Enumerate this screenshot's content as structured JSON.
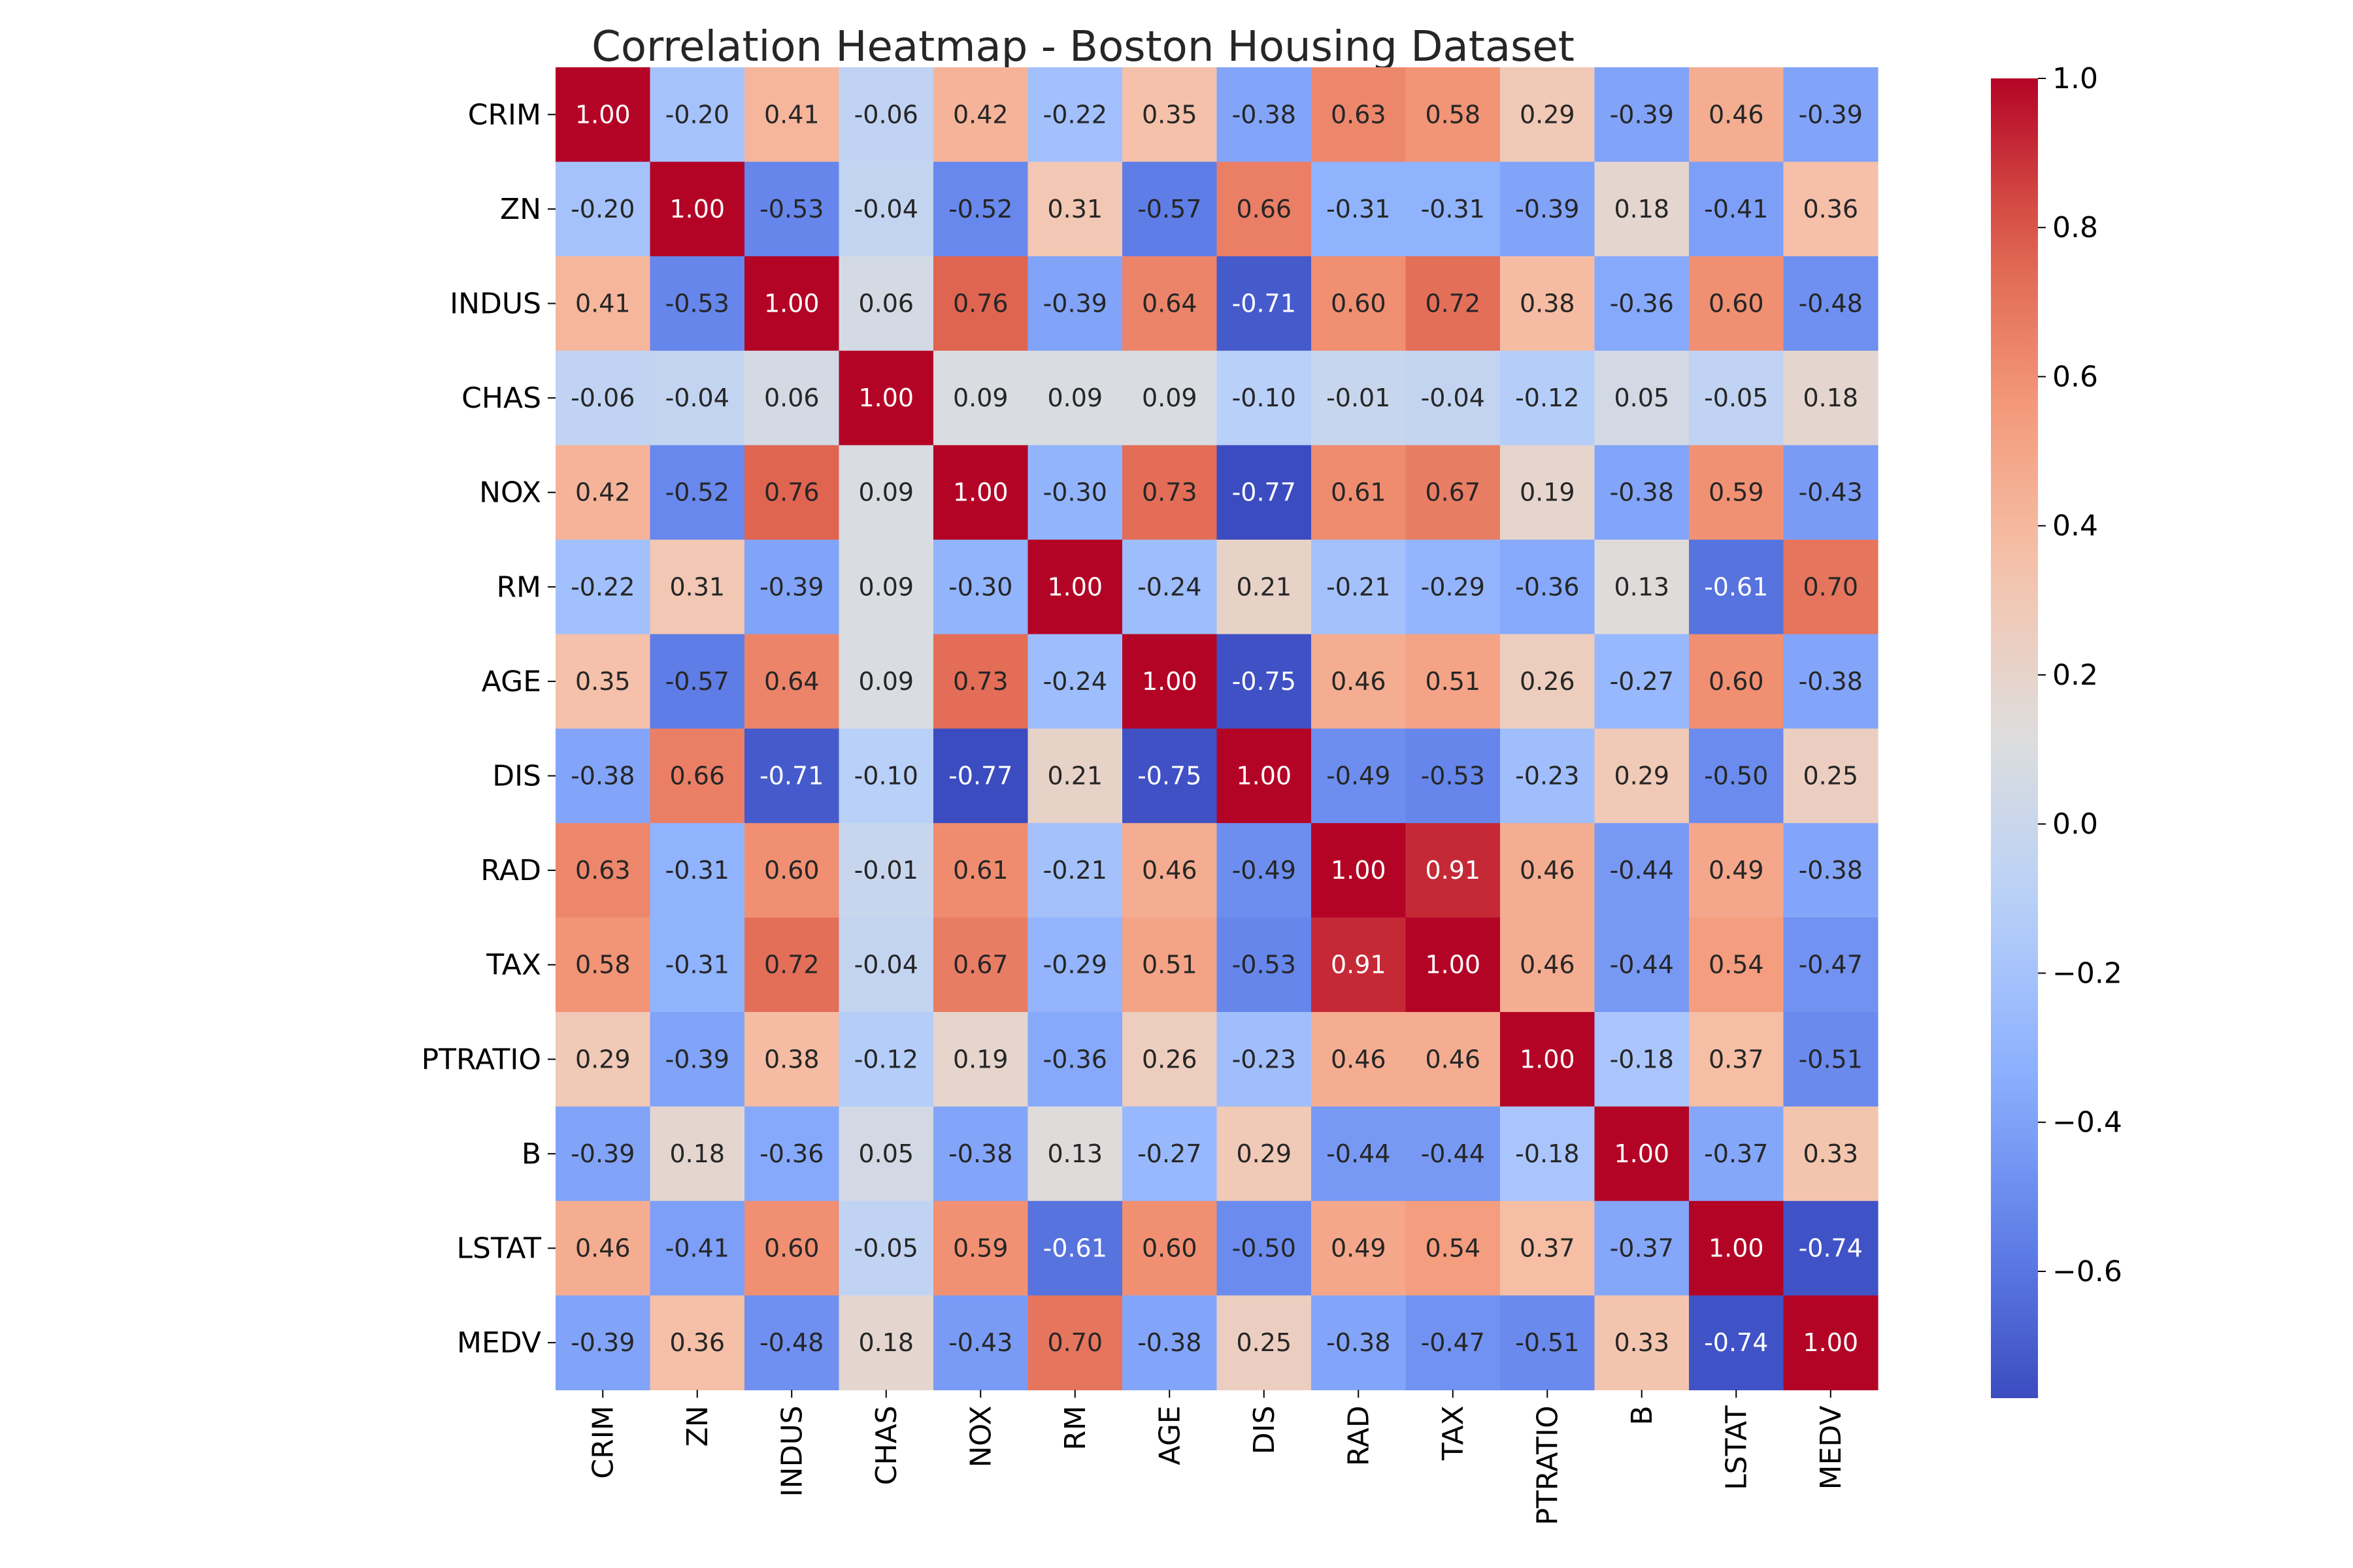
{
  "chart_data": {
    "type": "heatmap",
    "title": "Correlation Heatmap - Boston Housing Dataset",
    "xlabel": "",
    "ylabel": "",
    "colormap": "coolwarm",
    "value_range": [
      -0.77,
      1.0
    ],
    "labels": [
      "CRIM",
      "ZN",
      "INDUS",
      "CHAS",
      "NOX",
      "RM",
      "AGE",
      "DIS",
      "RAD",
      "TAX",
      "PTRATIO",
      "B",
      "LSTAT",
      "MEDV"
    ],
    "matrix": [
      [
        1.0,
        -0.2,
        0.41,
        -0.06,
        0.42,
        -0.22,
        0.35,
        -0.38,
        0.63,
        0.58,
        0.29,
        -0.39,
        0.46,
        -0.39
      ],
      [
        -0.2,
        1.0,
        -0.53,
        -0.04,
        -0.52,
        0.31,
        -0.57,
        0.66,
        -0.31,
        -0.31,
        -0.39,
        0.18,
        -0.41,
        0.36
      ],
      [
        0.41,
        -0.53,
        1.0,
        0.06,
        0.76,
        -0.39,
        0.64,
        -0.71,
        0.6,
        0.72,
        0.38,
        -0.36,
        0.6,
        -0.48
      ],
      [
        -0.06,
        -0.04,
        0.06,
        1.0,
        0.09,
        0.09,
        0.09,
        -0.1,
        -0.01,
        -0.04,
        -0.12,
        0.05,
        -0.05,
        0.18
      ],
      [
        0.42,
        -0.52,
        0.76,
        0.09,
        1.0,
        -0.3,
        0.73,
        -0.77,
        0.61,
        0.67,
        0.19,
        -0.38,
        0.59,
        -0.43
      ],
      [
        -0.22,
        0.31,
        -0.39,
        0.09,
        -0.3,
        1.0,
        -0.24,
        0.21,
        -0.21,
        -0.29,
        -0.36,
        0.13,
        -0.61,
        0.7
      ],
      [
        0.35,
        -0.57,
        0.64,
        0.09,
        0.73,
        -0.24,
        1.0,
        -0.75,
        0.46,
        0.51,
        0.26,
        -0.27,
        0.6,
        -0.38
      ],
      [
        -0.38,
        0.66,
        -0.71,
        -0.1,
        -0.77,
        0.21,
        -0.75,
        1.0,
        -0.49,
        -0.53,
        -0.23,
        0.29,
        -0.5,
        0.25
      ],
      [
        0.63,
        -0.31,
        0.6,
        -0.01,
        0.61,
        -0.21,
        0.46,
        -0.49,
        1.0,
        0.91,
        0.46,
        -0.44,
        0.49,
        -0.38
      ],
      [
        0.58,
        -0.31,
        0.72,
        -0.04,
        0.67,
        -0.29,
        0.51,
        -0.53,
        0.91,
        1.0,
        0.46,
        -0.44,
        0.54,
        -0.47
      ],
      [
        0.29,
        -0.39,
        0.38,
        -0.12,
        0.19,
        -0.36,
        0.26,
        -0.23,
        0.46,
        0.46,
        1.0,
        -0.18,
        0.37,
        -0.51
      ],
      [
        -0.39,
        0.18,
        -0.36,
        0.05,
        -0.38,
        0.13,
        -0.27,
        0.29,
        -0.44,
        -0.44,
        -0.18,
        1.0,
        -0.37,
        0.33
      ],
      [
        0.46,
        -0.41,
        0.6,
        -0.05,
        0.59,
        -0.61,
        0.6,
        -0.5,
        0.49,
        0.54,
        0.37,
        -0.37,
        1.0,
        -0.74
      ],
      [
        -0.39,
        0.36,
        -0.48,
        0.18,
        -0.43,
        0.7,
        -0.38,
        0.25,
        -0.38,
        -0.47,
        -0.51,
        0.33,
        -0.74,
        1.0
      ]
    ],
    "colorbar": {
      "ticks": [
        "1.0",
        "0.8",
        "0.6",
        "0.4",
        "0.2",
        "0.0",
        "−0.2",
        "−0.4",
        "−0.6"
      ],
      "tick_values": [
        1.0,
        0.8,
        0.6,
        0.4,
        0.2,
        0.0,
        -0.2,
        -0.4,
        -0.6
      ]
    }
  }
}
